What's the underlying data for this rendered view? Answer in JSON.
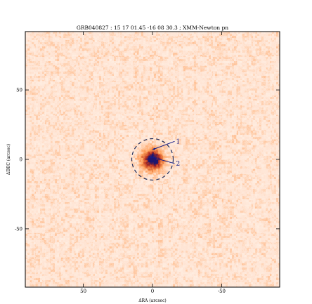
{
  "title": "GRB040827 : 15 17 01.45  -16 08 30.3 ; XMM-Newton pn",
  "chart_data": {
    "type": "heatmap",
    "title": "GRB040827 : 15 17 01.45  -16 08 30.3 ; XMM-Newton pn",
    "xlabel": "ΔRA (arcsec)",
    "ylabel": "ΔDEC (arcsec)",
    "xlim": [
      92,
      -92
    ],
    "ylim": [
      -92,
      92
    ],
    "xticks": [
      50,
      0,
      -50
    ],
    "yticks": [
      50,
      0,
      -50
    ],
    "xtick_labels": [
      "50",
      "0",
      "-50"
    ],
    "ytick_labels": [
      "50",
      "0",
      "-50"
    ],
    "colormap": "white-orange-red-blue",
    "source_center": [
      0,
      0
    ],
    "circle": {
      "center": [
        0,
        0
      ],
      "radius": 15,
      "style": "dashed"
    },
    "markers": [
      {
        "label": "1",
        "x": 0,
        "y": 7,
        "label_x": -16,
        "label_y": 13
      },
      {
        "label": "2",
        "x": 2,
        "y": 2,
        "label_x": -16,
        "label_y": -3
      }
    ]
  },
  "colors": {
    "background": "#ffffff",
    "field": "#fff1e6",
    "low": "#ffe2cc",
    "mid": "#f4a364",
    "high": "#c8391a",
    "peak": "#1d176c",
    "annotation": "#111c8a",
    "frame": "#000000"
  }
}
